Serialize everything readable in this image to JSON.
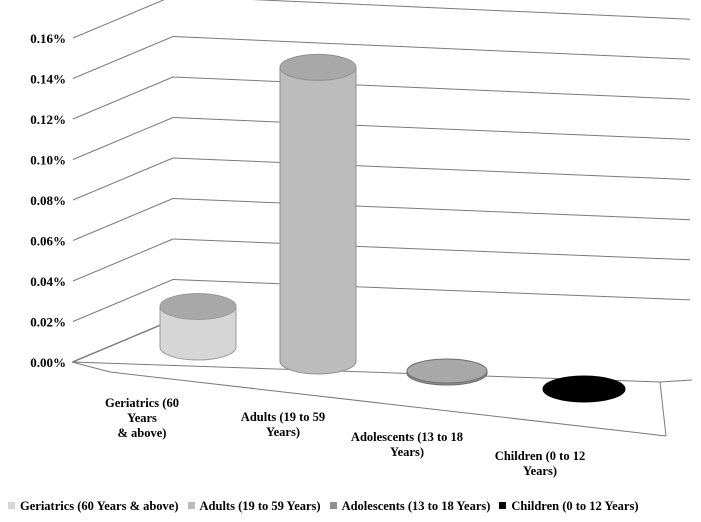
{
  "chart_data": {
    "type": "bar",
    "style": "3d-cylinder",
    "categories": [
      "Geriatrics (60 Years & above)",
      "Adults (19 to 59 Years)",
      "Adolescents (13 to 18 Years)",
      "Children (0 to 12 Years)"
    ],
    "category_tick_lines": [
      [
        "Geriatrics (60",
        "Years",
        "& above)"
      ],
      [
        "Adults (19 to 59",
        "Years)"
      ],
      [
        "Adolescents (13 to 18",
        "Years)"
      ],
      [
        "Children (0 to 12",
        "Years)"
      ]
    ],
    "values": [
      0.02,
      0.145,
      0.001,
      0.0
    ],
    "value_unit": "%",
    "ylim": [
      0,
      0.16
    ],
    "y_ticks": [
      "0.00%",
      "0.02%",
      "0.04%",
      "0.06%",
      "0.08%",
      "0.10%",
      "0.12%",
      "0.14%",
      "0.16%"
    ],
    "grid": true,
    "colors": [
      "#d6d6d6",
      "#bcbcbc",
      "#8f8f8f",
      "#000000"
    ],
    "legend": {
      "position": "bottom",
      "entries": [
        "Geriatrics (60 Years & above)",
        "Adults (19 to 59 Years)",
        "Adolescents (13 to 18 Years)",
        "Children (0 to 12 Years)"
      ]
    },
    "title": "",
    "xlabel": "",
    "ylabel": ""
  }
}
